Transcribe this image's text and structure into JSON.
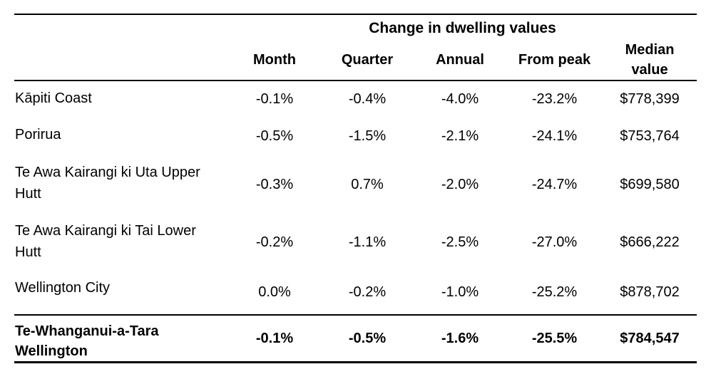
{
  "chart_data": {
    "type": "table",
    "header": {
      "group_title": "Change in dwelling values",
      "col_region": "",
      "col_month": "Month",
      "col_quarter": "Quarter",
      "col_annual": "Annual",
      "col_from_peak": "From peak",
      "col_median_line1": "Median",
      "col_median_line2": "value"
    },
    "rows": [
      {
        "region": "Kāpiti Coast",
        "month": "-0.1%",
        "quarter": "-0.4%",
        "annual": "-4.0%",
        "from_peak": "-23.2%",
        "median_value": "$778,399"
      },
      {
        "region": "Porirua",
        "month": "-0.5%",
        "quarter": "-1.5%",
        "annual": "-2.1%",
        "from_peak": "-24.1%",
        "median_value": "$753,764"
      },
      {
        "region": "Te Awa Kairangi ki Uta Upper Hutt",
        "month": "-0.3%",
        "quarter": "0.7%",
        "annual": "-2.0%",
        "from_peak": "-24.7%",
        "median_value": "$699,580"
      },
      {
        "region": "Te Awa Kairangi ki Tai Lower Hutt",
        "month": "-0.2%",
        "quarter": "-1.1%",
        "annual": "-2.5%",
        "from_peak": "-27.0%",
        "median_value": "$666,222"
      },
      {
        "region": "Wellington City",
        "month": "0.0%",
        "quarter": "-0.2%",
        "annual": "-1.0%",
        "from_peak": "-25.2%",
        "median_value": "$878,702"
      },
      {
        "region": "Te-Whanganui-a-Tara Wellington",
        "month": "-0.1%",
        "quarter": "-0.5%",
        "annual": "-1.6%",
        "from_peak": "-25.5%",
        "median_value": "$784,547",
        "emphasis": true
      }
    ],
    "layout": {
      "grid": "horizontal-rules-only",
      "emphasis_row_index": 5
    },
    "colors": {
      "text": "#000000",
      "rule": "#000000",
      "background": "#ffffff"
    }
  }
}
